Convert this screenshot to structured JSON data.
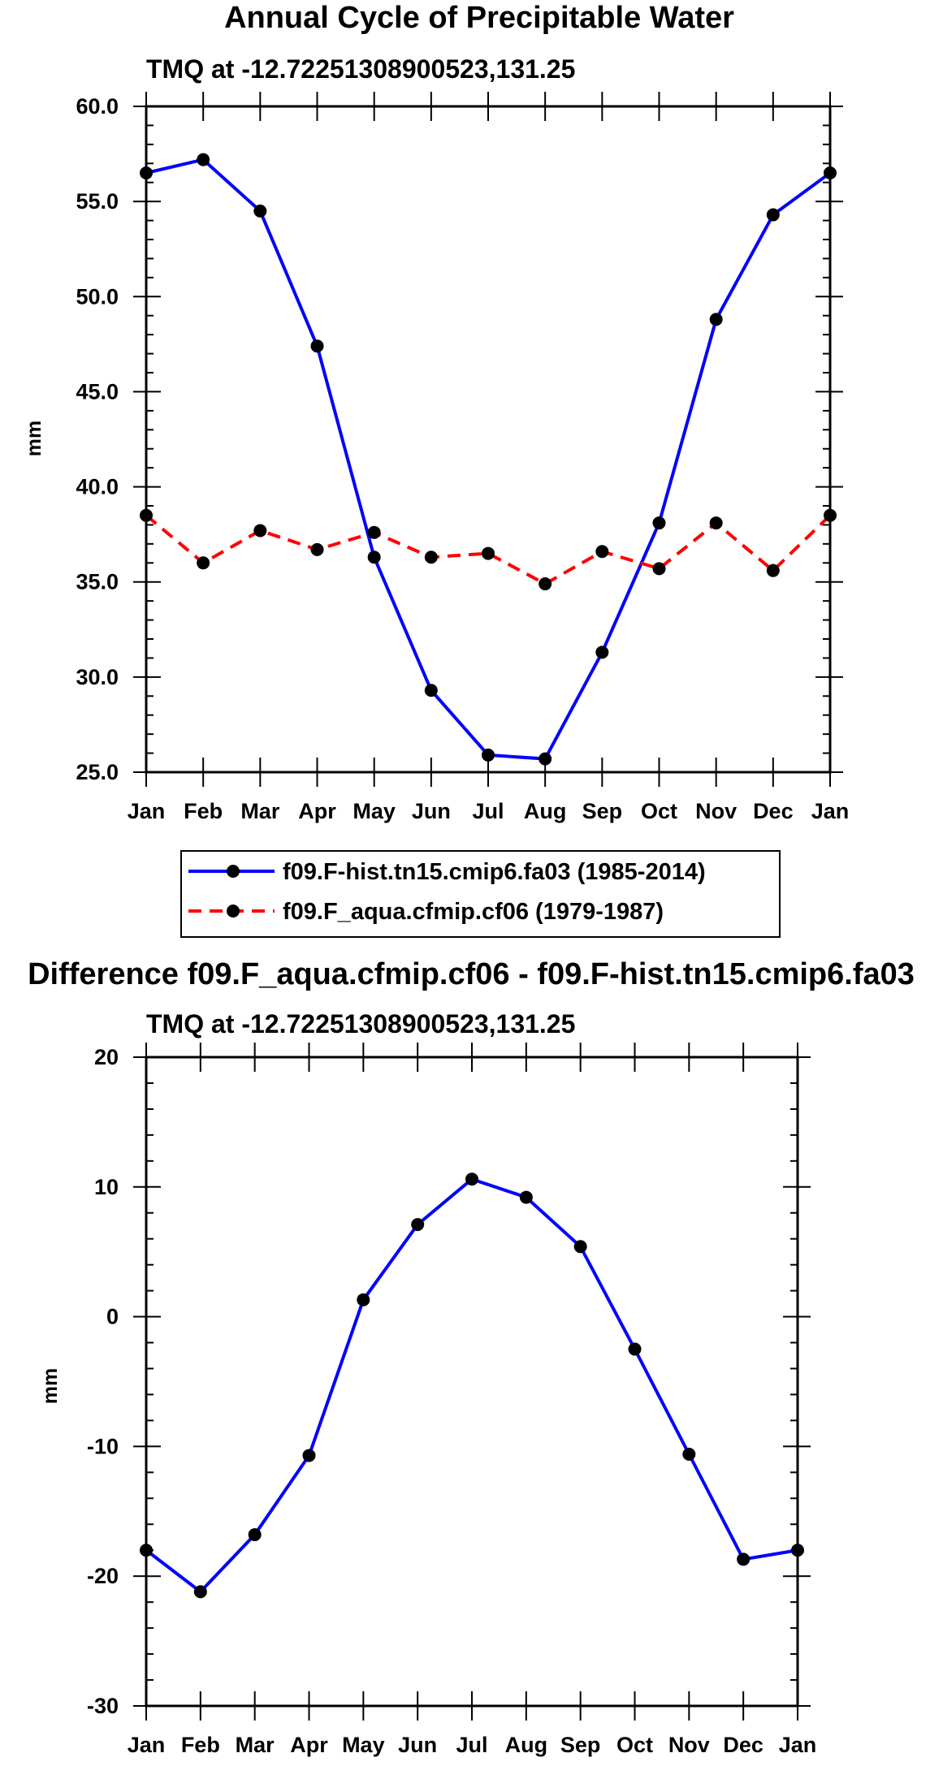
{
  "chart_data": [
    {
      "type": "line",
      "title": "Annual Cycle of Precipitable Water",
      "subtitle": "TMQ at -12.72251308900523,131.25",
      "xlabel": "",
      "ylabel": "mm",
      "categories": [
        "Jan",
        "Feb",
        "Mar",
        "Apr",
        "May",
        "Jun",
        "Jul",
        "Aug",
        "Sep",
        "Oct",
        "Nov",
        "Dec",
        "Jan"
      ],
      "ylim": [
        25,
        60
      ],
      "yticks": [
        "25.0",
        "30.0",
        "35.0",
        "40.0",
        "45.0",
        "50.0",
        "55.0",
        "60.0"
      ],
      "ytick_values": [
        25,
        30,
        35,
        40,
        45,
        50,
        55,
        60
      ],
      "grid": false,
      "legend_position": "bottom",
      "series": [
        {
          "name": "f09.F-hist.tn15.cmip6.fa03 (1985-2014)",
          "color": "#0000ff",
          "dash": "solid",
          "marker_color": "#000000",
          "values": [
            56.5,
            57.2,
            54.5,
            47.4,
            36.3,
            29.3,
            25.9,
            25.7,
            31.3,
            38.1,
            48.8,
            54.3,
            56.5
          ]
        },
        {
          "name": "f09.F_aqua.cfmip.cf06 (1979-1987)",
          "color": "#ff0000",
          "dash": "dashed",
          "marker_color": "#000000",
          "values": [
            38.5,
            36.0,
            37.7,
            36.7,
            37.6,
            36.3,
            36.5,
            34.9,
            36.6,
            35.7,
            38.1,
            35.6,
            38.5
          ]
        }
      ]
    },
    {
      "type": "line",
      "title": "Difference f09.F_aqua.cfmip.cf06 - f09.F-hist.tn15.cmip6.fa03",
      "subtitle": "TMQ at -12.72251308900523,131.25",
      "xlabel": "",
      "ylabel": "mm",
      "categories": [
        "Jan",
        "Feb",
        "Mar",
        "Apr",
        "May",
        "Jun",
        "Jul",
        "Aug",
        "Sep",
        "Oct",
        "Nov",
        "Dec",
        "Jan"
      ],
      "ylim": [
        -30,
        20
      ],
      "yticks": [
        "-30",
        "-20",
        "-10",
        "0",
        "10",
        "20"
      ],
      "ytick_values": [
        -30,
        -20,
        -10,
        0,
        10,
        20
      ],
      "grid": false,
      "series": [
        {
          "name": "Difference",
          "color": "#0000ff",
          "dash": "solid",
          "marker_color": "#000000",
          "values": [
            -18.0,
            -21.2,
            -16.8,
            -10.7,
            1.3,
            7.1,
            10.6,
            9.2,
            5.4,
            -2.5,
            -10.6,
            -18.7,
            -18.0
          ]
        }
      ]
    }
  ]
}
